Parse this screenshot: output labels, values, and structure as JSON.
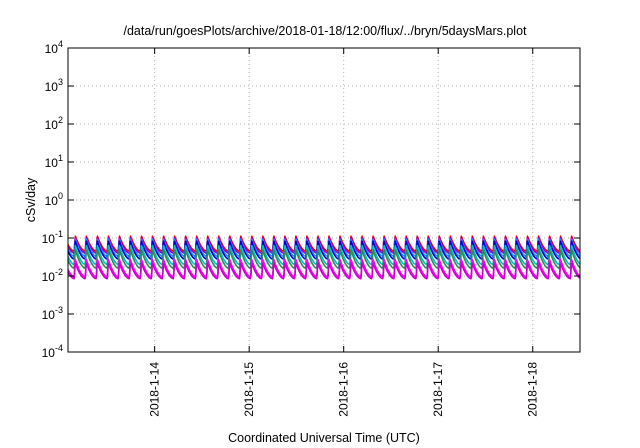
{
  "chart_data": {
    "type": "line",
    "title": "/data/run/goesPlots/archive/2018-01-18/12:00/flux/../bryn/5daysMars.plot",
    "xlabel": "Coordinated Universal Time (UTC)",
    "ylabel": "cSv/day",
    "y_scale": "log",
    "ylim": [
      0.0001,
      10000
    ],
    "xlim": [
      "2018-01-13 02:00",
      "2018-01-18 12:00"
    ],
    "grid": true,
    "x_ticks": [
      {
        "label": "2018-1-14",
        "value": "2018-01-14"
      },
      {
        "label": "2018-1-15",
        "value": "2018-01-15"
      },
      {
        "label": "2018-1-16",
        "value": "2018-01-16"
      },
      {
        "label": "2018-1-17",
        "value": "2018-01-17"
      },
      {
        "label": "2018-1-18",
        "value": "2018-01-18"
      }
    ],
    "y_ticks": [
      {
        "value": 0.0001,
        "base": "10",
        "exp": "-4"
      },
      {
        "value": 0.001,
        "base": "10",
        "exp": "-3"
      },
      {
        "value": 0.01,
        "base": "10",
        "exp": "-2"
      },
      {
        "value": 0.1,
        "base": "10",
        "exp": "-1"
      },
      {
        "value": 1,
        "base": "10",
        "exp": "0"
      },
      {
        "value": 10,
        "base": "10",
        "exp": "1"
      },
      {
        "value": 100,
        "base": "10",
        "exp": "2"
      },
      {
        "value": 1000,
        "base": "10",
        "exp": "3"
      },
      {
        "value": 10000,
        "base": "10",
        "exp": "4"
      }
    ],
    "cycle_period_hours": 2.8,
    "series": [
      {
        "color": "#ff0000",
        "peak": 0.115,
        "trough": 0.045
      },
      {
        "color": "#9400d3",
        "peak": 0.105,
        "trough": 0.04
      },
      {
        "color": "#1e90ff",
        "peak": 0.095,
        "trough": 0.033
      },
      {
        "color": "#0000cd",
        "peak": 0.085,
        "trough": 0.028
      },
      {
        "color": "#00c0c0",
        "peak": 0.065,
        "trough": 0.02
      },
      {
        "color": "#2e8b57",
        "peak": 0.05,
        "trough": 0.016
      },
      {
        "color": "#ff00ff",
        "peak": 0.028,
        "trough": 0.0095
      },
      {
        "color": "#cc00cc",
        "peak": 0.022,
        "trough": 0.0085
      }
    ]
  }
}
